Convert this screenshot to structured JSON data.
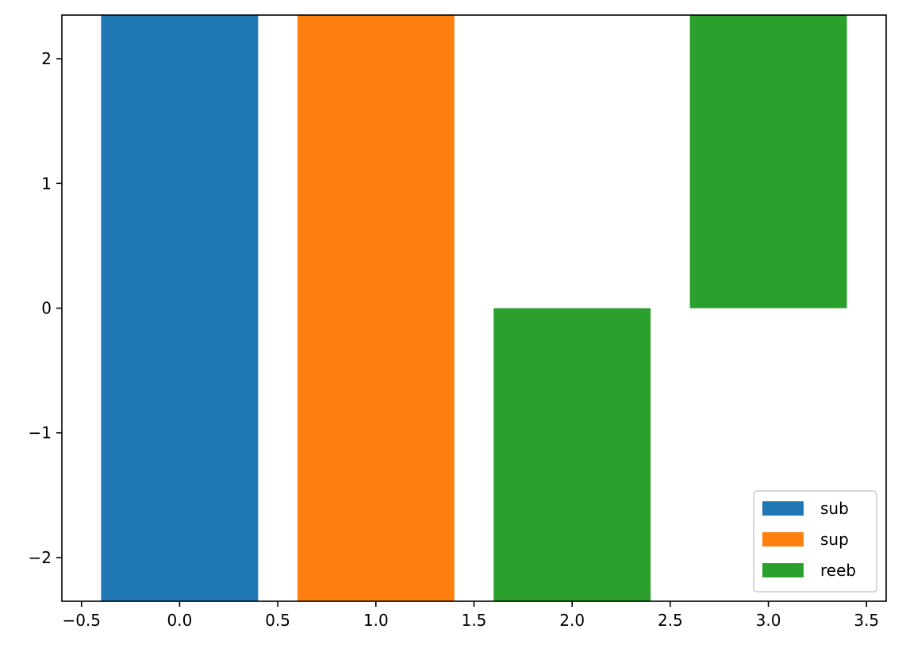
{
  "chart_data": {
    "type": "bar",
    "title": "",
    "xlabel": "",
    "ylabel": "",
    "xlim": [
      -0.6,
      3.6
    ],
    "ylim": [
      -2.35,
      2.35
    ],
    "grid": false,
    "legend_placement": "bottom-right",
    "x_ticks": [
      {
        "value": -0.5,
        "label": "−0.5"
      },
      {
        "value": 0.0,
        "label": "0.0"
      },
      {
        "value": 0.5,
        "label": "0.5"
      },
      {
        "value": 1.0,
        "label": "1.0"
      },
      {
        "value": 1.5,
        "label": "1.5"
      },
      {
        "value": 2.0,
        "label": "2.0"
      },
      {
        "value": 2.5,
        "label": "2.5"
      },
      {
        "value": 3.0,
        "label": "3.0"
      },
      {
        "value": 3.5,
        "label": "3.5"
      }
    ],
    "y_ticks": [
      {
        "value": -2,
        "label": "−2"
      },
      {
        "value": -1,
        "label": "−1"
      },
      {
        "value": 0,
        "label": "0"
      },
      {
        "value": 1,
        "label": "1"
      },
      {
        "value": 2,
        "label": "2"
      }
    ],
    "bar_width": 0.8,
    "bars": [
      {
        "series": "sub",
        "x": 0,
        "bottom": -2.35,
        "top": 2.35
      },
      {
        "series": "sup",
        "x": 1,
        "bottom": -2.35,
        "top": 2.35
      },
      {
        "series": "reeb",
        "x": 2,
        "bottom": -2.35,
        "top": 0
      },
      {
        "series": "reeb",
        "x": 3,
        "bottom": 0,
        "top": 2.35
      }
    ],
    "series": [
      {
        "name": "sub",
        "color": "#1f77b4"
      },
      {
        "name": "sup",
        "color": "#ff7f0e"
      },
      {
        "name": "reeb",
        "color": "#2ca02c"
      }
    ]
  }
}
